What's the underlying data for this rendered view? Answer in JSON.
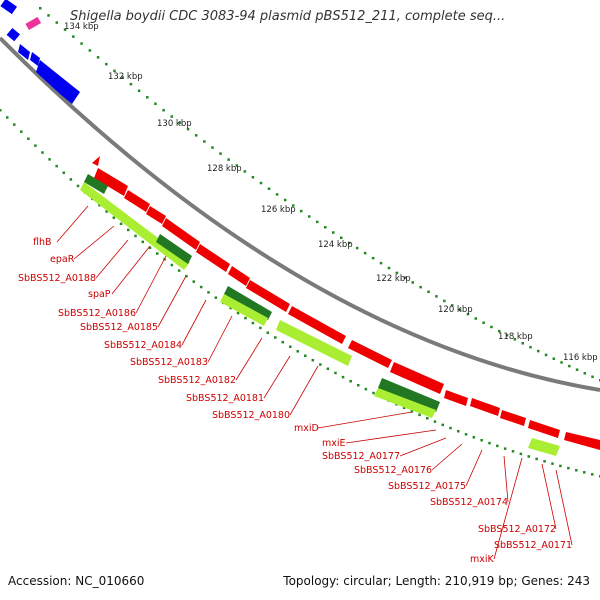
{
  "title": "Shigella boydii CDC 3083-94 plasmid pBS512_211, complete seq...",
  "footer": {
    "accession": "Accession: NC_010660",
    "summary": "Topology: circular; Length: 210,919 bp; Genes: 243"
  },
  "scale_labels": [
    "134 kbp",
    "132 kbp",
    "130 kbp",
    "128 kbp",
    "126 kbp",
    "124 kbp",
    "122 kbp",
    "120 kbp",
    "118 kbp",
    "116 kbp"
  ],
  "gene_labels": [
    "flhB",
    "epaR",
    "SbBS512_A0188",
    "spaP",
    "SbBS512_A0186",
    "SbBS512_A0185",
    "SbBS512_A0184",
    "SbBS512_A0183",
    "SbBS512_A0182",
    "SbBS512_A0181",
    "SbBS512_A0180",
    "mxiD",
    "mxiE",
    "SbBS512_A0177",
    "SbBS512_A0176",
    "SbBS512_A0175",
    "SbBS512_A0174",
    "SbBS512_A0172",
    "SbBS512_A0171",
    "mxiK"
  ],
  "colors": {
    "backbone": "#7a7a7a",
    "forward_cds": "#0000ee",
    "reverse_cds": "#ee0000",
    "cog_light": "#aaee33",
    "cog_dark": "#227722",
    "rna": "#ee3399",
    "tick": "#228822",
    "label": "#cc0000"
  }
}
